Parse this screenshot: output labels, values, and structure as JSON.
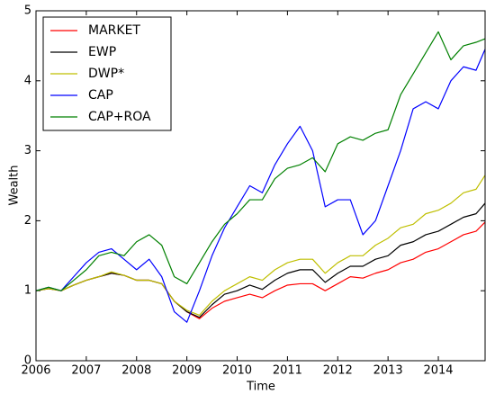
{
  "chart_data": {
    "type": "line",
    "xlabel": "Time",
    "ylabel": "Wealth",
    "x": [
      2006,
      2006.25,
      2006.5,
      2006.75,
      2007,
      2007.25,
      2007.5,
      2007.75,
      2008,
      2008.25,
      2008.5,
      2008.75,
      2009,
      2009.25,
      2009.5,
      2009.75,
      2010,
      2010.25,
      2010.5,
      2010.75,
      2011,
      2011.25,
      2011.5,
      2011.75,
      2012,
      2012.25,
      2012.5,
      2012.75,
      2013,
      2013.25,
      2013.5,
      2013.75,
      2014,
      2014.25,
      2014.5,
      2014.75,
      2014.93
    ],
    "series": [
      {
        "name": "MARKET",
        "color": "#ff0000",
        "values": [
          1.0,
          1.03,
          1.0,
          1.08,
          1.15,
          1.2,
          1.25,
          1.22,
          1.15,
          1.15,
          1.1,
          0.85,
          0.7,
          0.6,
          0.75,
          0.85,
          0.9,
          0.95,
          0.9,
          1.0,
          1.08,
          1.1,
          1.1,
          1.0,
          1.1,
          1.2,
          1.18,
          1.25,
          1.3,
          1.4,
          1.45,
          1.55,
          1.6,
          1.7,
          1.8,
          1.85,
          1.98
        ]
      },
      {
        "name": "EWP",
        "color": "#000000",
        "values": [
          1.0,
          1.03,
          1.0,
          1.08,
          1.15,
          1.2,
          1.25,
          1.22,
          1.15,
          1.15,
          1.1,
          0.85,
          0.7,
          0.62,
          0.8,
          0.95,
          1.0,
          1.08,
          1.02,
          1.15,
          1.25,
          1.3,
          1.3,
          1.12,
          1.25,
          1.35,
          1.35,
          1.45,
          1.5,
          1.65,
          1.7,
          1.8,
          1.85,
          1.95,
          2.05,
          2.1,
          2.25
        ]
      },
      {
        "name": "DWP*",
        "color": "#bfbf00",
        "values": [
          1.0,
          1.03,
          1.0,
          1.08,
          1.15,
          1.2,
          1.27,
          1.22,
          1.15,
          1.15,
          1.1,
          0.85,
          0.72,
          0.65,
          0.85,
          1.0,
          1.1,
          1.2,
          1.15,
          1.3,
          1.4,
          1.45,
          1.45,
          1.25,
          1.4,
          1.5,
          1.5,
          1.65,
          1.75,
          1.9,
          1.95,
          2.1,
          2.15,
          2.25,
          2.4,
          2.45,
          2.65
        ]
      },
      {
        "name": "CAP",
        "color": "#0000ff",
        "values": [
          1.0,
          1.05,
          1.0,
          1.2,
          1.4,
          1.55,
          1.6,
          1.45,
          1.3,
          1.45,
          1.2,
          0.7,
          0.55,
          1.0,
          1.5,
          1.9,
          2.2,
          2.5,
          2.4,
          2.8,
          3.1,
          3.35,
          3.0,
          2.2,
          2.3,
          2.3,
          1.8,
          2.0,
          2.5,
          3.0,
          3.6,
          3.7,
          3.6,
          4.0,
          4.2,
          4.15,
          4.45
        ]
      },
      {
        "name": "CAP+ROA",
        "color": "#008000",
        "values": [
          1.0,
          1.05,
          1.0,
          1.15,
          1.3,
          1.5,
          1.55,
          1.5,
          1.7,
          1.8,
          1.65,
          1.2,
          1.1,
          1.4,
          1.7,
          1.95,
          2.1,
          2.3,
          2.3,
          2.6,
          2.75,
          2.8,
          2.9,
          2.7,
          3.1,
          3.2,
          3.15,
          3.25,
          3.3,
          3.8,
          4.1,
          4.4,
          4.7,
          4.3,
          4.5,
          4.55,
          4.6
        ]
      }
    ],
    "xlim": [
      2006,
      2014.93
    ],
    "xticks": [
      2006,
      2007,
      2008,
      2009,
      2010,
      2011,
      2012,
      2013,
      2014
    ],
    "ylim": [
      0,
      5
    ],
    "yticks": [
      0,
      1,
      2,
      3,
      4,
      5
    ],
    "legend": "upper left"
  }
}
